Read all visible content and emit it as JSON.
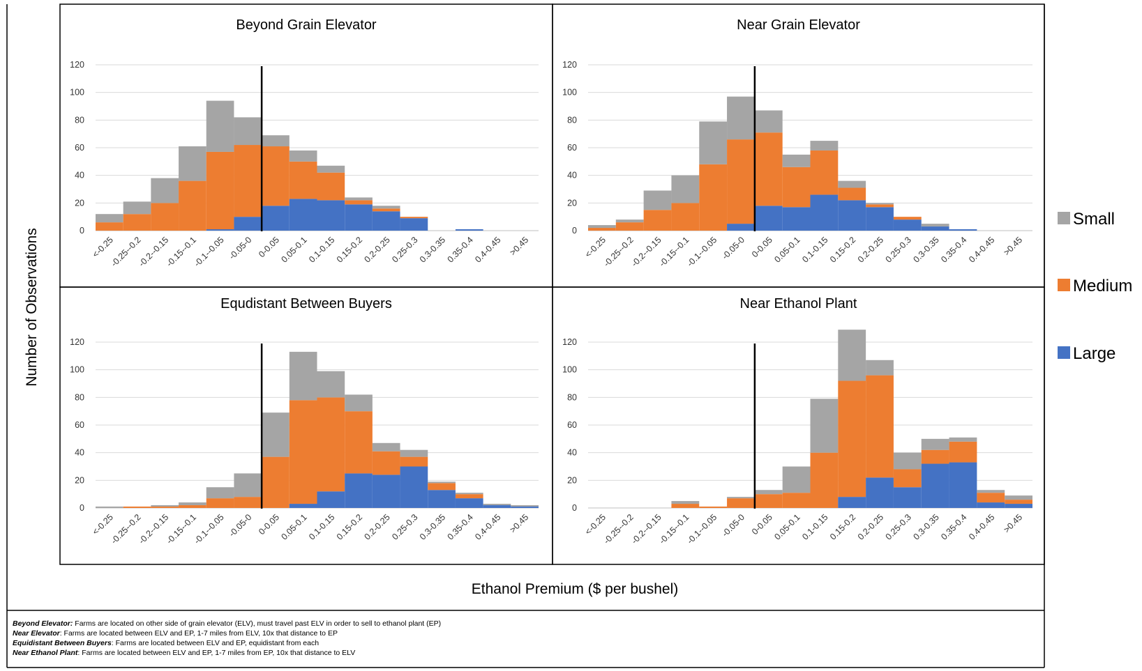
{
  "chart_data": [
    {
      "type": "bar",
      "stacked": true,
      "title": "Beyond Grain Elevator",
      "categories": [
        "<-0.25",
        "-0.25--0.2",
        "-0.2--0.15",
        "-0.15--0.1",
        "-0.1--0.05",
        "-0.05-0",
        "0-0.05",
        "0.05-0.1",
        "0.1-0.15",
        "0.15-0.2",
        "0.2-0.25",
        "0.25-0.3",
        "0.3-0.35",
        "0.35-0.4",
        "0.4-0.45",
        ">0.45"
      ],
      "series": [
        {
          "name": "Large",
          "values": [
            0,
            0,
            0,
            0,
            1,
            10,
            18,
            23,
            22,
            19,
            14,
            9,
            0,
            1,
            0,
            0
          ]
        },
        {
          "name": "Medium",
          "values": [
            6,
            12,
            20,
            36,
            56,
            52,
            43,
            27,
            20,
            3,
            2,
            1,
            0,
            0,
            0,
            0
          ]
        },
        {
          "name": "Small",
          "values": [
            6,
            9,
            18,
            25,
            37,
            20,
            8,
            8,
            5,
            2,
            2,
            0,
            0,
            0,
            0,
            0
          ]
        }
      ],
      "ylim": [
        0,
        120
      ],
      "yticks": [
        0,
        20,
        40,
        60,
        80,
        100,
        120
      ],
      "reference_line_x": "0"
    },
    {
      "type": "bar",
      "stacked": true,
      "title": "Near Grain Elevator",
      "categories": [
        "<-0.25",
        "-0.25--0.2",
        "-0.2--0.15",
        "-0.15--0.1",
        "-0.1--0.05",
        "-0.05-0",
        "0-0.05",
        "0.05-0.1",
        "0.1-0.15",
        "0.15-0.2",
        "0.2-0.25",
        "0.25-0.3",
        "0.3-0.35",
        "0.35-0.4",
        "0.4-0.45",
        ">0.45"
      ],
      "series": [
        {
          "name": "Large",
          "values": [
            0,
            0,
            0,
            0,
            0,
            5,
            18,
            17,
            26,
            22,
            17,
            8,
            3,
            1,
            0,
            0
          ]
        },
        {
          "name": "Medium",
          "values": [
            2,
            6,
            15,
            20,
            48,
            61,
            53,
            29,
            32,
            9,
            2,
            2,
            0,
            0,
            0,
            0
          ]
        },
        {
          "name": "Small",
          "values": [
            2,
            2,
            14,
            20,
            31,
            31,
            16,
            9,
            7,
            5,
            1,
            0,
            2,
            0,
            0,
            0
          ]
        }
      ],
      "ylim": [
        0,
        120
      ],
      "yticks": [
        0,
        20,
        40,
        60,
        80,
        100,
        120
      ],
      "reference_line_x": "0"
    },
    {
      "type": "bar",
      "stacked": true,
      "title": "Equdistant Between Buyers",
      "categories": [
        "<-0.25",
        "-0.25--0.2",
        "-0.2--0.15",
        "-0.15--0.1",
        "-0.1--0.05",
        "-0.05-0",
        "0-0.05",
        "0.05-0.1",
        "0.1-0.15",
        "0.15-0.2",
        "0.2-0.25",
        "0.25-0.3",
        "0.3-0.35",
        "0.35-0.4",
        "0.4-0.45",
        ">0.45"
      ],
      "series": [
        {
          "name": "Large",
          "values": [
            0,
            0,
            0,
            0,
            0,
            0,
            0,
            3,
            12,
            25,
            24,
            30,
            13,
            7,
            2,
            1
          ]
        },
        {
          "name": "Medium",
          "values": [
            0,
            1,
            1,
            2,
            7,
            8,
            37,
            75,
            68,
            45,
            17,
            7,
            5,
            3,
            0,
            0
          ]
        },
        {
          "name": "Small",
          "values": [
            1,
            0,
            1,
            2,
            8,
            17,
            32,
            35,
            19,
            12,
            6,
            5,
            1,
            1,
            1,
            1
          ]
        }
      ],
      "ylim": [
        0,
        120
      ],
      "yticks": [
        0,
        20,
        40,
        60,
        80,
        100,
        120
      ],
      "reference_line_x": "0"
    },
    {
      "type": "bar",
      "stacked": true,
      "title": "Near Ethanol Plant",
      "categories": [
        "<-0.25",
        "-0.25--0.2",
        "-0.2--0.15",
        "-0.15--0.1",
        "-0.1--0.05",
        "-0.05-0",
        "0-0.05",
        "0.05-0.1",
        "0.1-0.15",
        "0.15-0.2",
        "0.2-0.25",
        "0.25-0.3",
        "0.3-0.35",
        "0.35-0.4",
        "0.4-0.45",
        ">0.45"
      ],
      "series": [
        {
          "name": "Large",
          "values": [
            0,
            0,
            0,
            0,
            0,
            0,
            0,
            0,
            0,
            8,
            22,
            15,
            32,
            33,
            4,
            3
          ]
        },
        {
          "name": "Medium",
          "values": [
            0,
            0,
            0,
            3,
            1,
            7,
            10,
            11,
            40,
            84,
            74,
            13,
            10,
            15,
            7,
            3
          ]
        },
        {
          "name": "Small",
          "values": [
            0,
            0,
            0,
            2,
            0,
            1,
            3,
            19,
            39,
            37,
            11,
            12,
            8,
            3,
            2,
            3
          ]
        }
      ],
      "ylim": [
        0,
        120
      ],
      "yticks": [
        0,
        20,
        40,
        60,
        80,
        100,
        120
      ],
      "reference_line_x": "0"
    }
  ],
  "colors": {
    "Large": "#4472c4",
    "Medium": "#ed7d31",
    "Small": "#a5a5a5"
  },
  "xlabel": "Ethanol Premium ($ per bushel)",
  "ylabel": "Number of Observations",
  "legend": {
    "placement": "right",
    "items": [
      "Small",
      "Medium",
      "Large"
    ]
  },
  "notes": [
    {
      "term": "Beyond Elevator:",
      "text": " Farms are located on other side of grain elevator (ELV), must travel past ELV in order to sell to ethanol plant (EP)"
    },
    {
      "term": "Near Elevator",
      "text": ": Farms are located between ELV and EP, 1-7 miles from ELV, 10x that distance to EP"
    },
    {
      "term": "Equidistant Between Buyers",
      "text": ": Farms are located between ELV and EP, equidistant from each"
    },
    {
      "term": "Near Ethanol Plant",
      "text": ": Farms are located between ELV and EP, 1-7 miles from EP, 10x that distance to ELV"
    }
  ]
}
